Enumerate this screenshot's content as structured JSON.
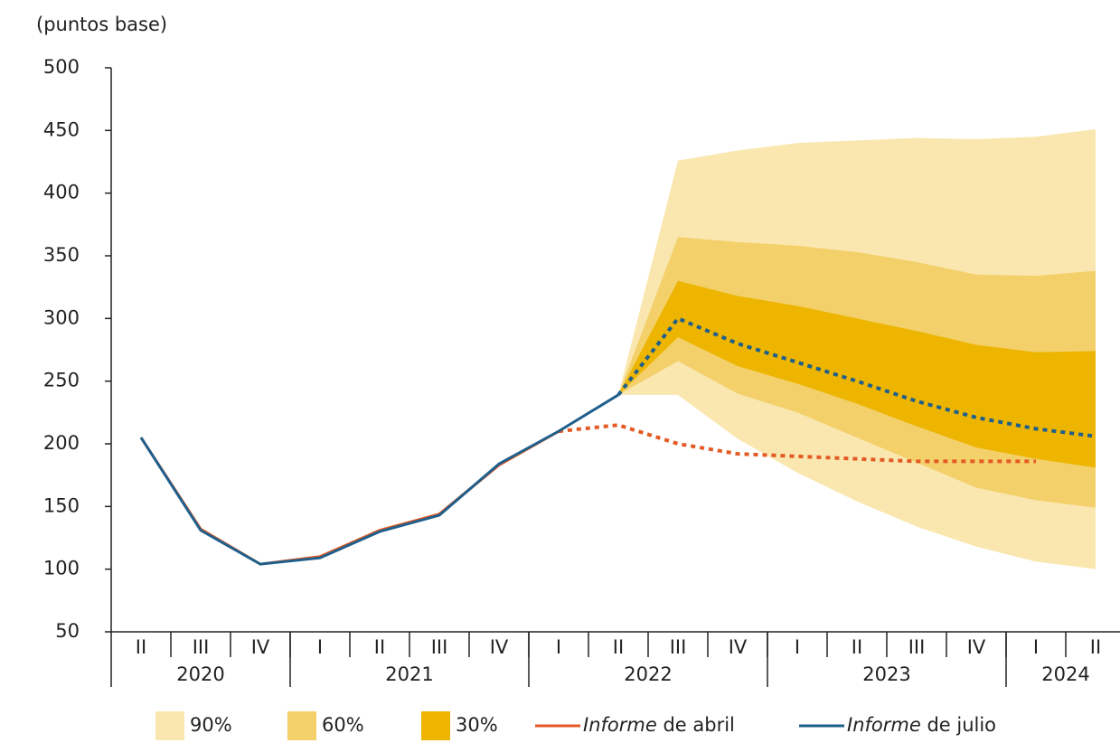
{
  "chart_data": {
    "type": "fan",
    "y_label": "(puntos base)",
    "categories": [
      "II",
      "III",
      "IV",
      "I",
      "II",
      "III",
      "IV",
      "I",
      "II",
      "III",
      "IV",
      "I",
      "II",
      "III",
      "IV",
      "I",
      "II"
    ],
    "years": [
      {
        "label": "2020",
        "quarters": 3
      },
      {
        "label": "2021",
        "quarters": 4
      },
      {
        "label": "2022",
        "quarters": 4
      },
      {
        "label": "2023",
        "quarters": 4
      },
      {
        "label": "2024",
        "quarters": 2
      }
    ],
    "ylim": [
      50,
      500
    ],
    "yticks": [
      50,
      100,
      150,
      200,
      250,
      300,
      350,
      400,
      450,
      500
    ],
    "bands": [
      {
        "name": "90%",
        "color": "#fae7b0",
        "upper": [
          null,
          null,
          null,
          null,
          null,
          null,
          null,
          null,
          239,
          426,
          434,
          440,
          442,
          444,
          443,
          445,
          451
        ],
        "lower": [
          null,
          null,
          null,
          null,
          null,
          null,
          null,
          null,
          239,
          239,
          204,
          177,
          154,
          134,
          118,
          106,
          100
        ]
      },
      {
        "name": "60%",
        "color": "#f3d06a",
        "upper": [
          null,
          null,
          null,
          null,
          null,
          null,
          null,
          null,
          239,
          365,
          361,
          358,
          353,
          345,
          335,
          334,
          338
        ],
        "lower": [
          null,
          null,
          null,
          null,
          null,
          null,
          null,
          null,
          239,
          266,
          240,
          225,
          205,
          185,
          165,
          155,
          149
        ]
      },
      {
        "name": "30%",
        "color": "#edb500",
        "upper": [
          null,
          null,
          null,
          null,
          null,
          null,
          null,
          null,
          239,
          330,
          318,
          310,
          300,
          290,
          279,
          273,
          274
        ],
        "lower": [
          null,
          null,
          null,
          null,
          null,
          null,
          null,
          null,
          239,
          285,
          262,
          248,
          232,
          214,
          197,
          188,
          181
        ]
      }
    ],
    "series": [
      {
        "name": "Informe de abril",
        "color": "#e35a24",
        "projection_from": 7,
        "values": [
          205,
          132,
          104,
          110,
          131,
          144,
          183,
          210,
          215,
          200,
          192,
          190,
          188,
          186,
          186,
          186,
          null
        ]
      },
      {
        "name": "Informe de julio",
        "color": "#1f5f8b",
        "projection_from": 8,
        "values": [
          205,
          131,
          104,
          109,
          130,
          143,
          184,
          210,
          239,
          300,
          280,
          265,
          250,
          234,
          221,
          212,
          206
        ]
      }
    ]
  }
}
